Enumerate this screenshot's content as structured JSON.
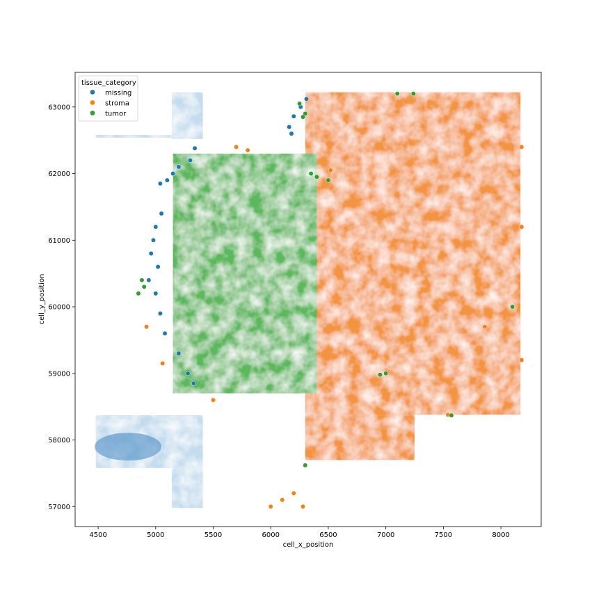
{
  "chart_data": {
    "type": "scatter",
    "title": "",
    "xlabel": "cell_x_position",
    "ylabel": "cell_y_position",
    "xlim": [
      4300,
      8350
    ],
    "ylim": [
      56700,
      63520
    ],
    "x_ticks": [
      4500,
      5000,
      5500,
      6000,
      6500,
      7000,
      7500,
      8000
    ],
    "y_ticks": [
      57000,
      58000,
      59000,
      60000,
      61000,
      62000,
      63000
    ],
    "grid": false,
    "legend": {
      "title": "tissue_category",
      "placement": "top-left",
      "entries": [
        "missing",
        "stroma",
        "tumor"
      ]
    },
    "series": [
      {
        "name": "missing",
        "color": "#1f77b4",
        "regions": [
          {
            "x": [
              5140,
              5410
            ],
            "y": [
              62520,
              63220
            ]
          },
          {
            "x": [
              4480,
              5140
            ],
            "y": [
              62540,
              62580
            ]
          },
          {
            "x": [
              4480,
              5410
            ],
            "y": [
              57580,
              58370
            ]
          },
          {
            "x": [
              5140,
              5410
            ],
            "y": [
              56980,
              57580
            ]
          }
        ],
        "points": [
          [
            5040,
            61850
          ],
          [
            5100,
            61900
          ],
          [
            5150,
            62000
          ],
          [
            5200,
            62100
          ],
          [
            5300,
            62200
          ],
          [
            5340,
            62380
          ],
          [
            5050,
            61400
          ],
          [
            5000,
            61200
          ],
          [
            4980,
            61000
          ],
          [
            4960,
            60800
          ],
          [
            5020,
            60600
          ],
          [
            4940,
            60400
          ],
          [
            5000,
            60200
          ],
          [
            5040,
            59900
          ],
          [
            5080,
            59600
          ],
          [
            5200,
            59300
          ],
          [
            5280,
            59000
          ],
          [
            5330,
            58850
          ],
          [
            6180,
            62600
          ],
          [
            6160,
            62700
          ],
          [
            6200,
            62860
          ],
          [
            6260,
            63000
          ],
          [
            6310,
            63120
          ]
        ]
      },
      {
        "name": "stroma",
        "color": "#ff7f0e",
        "regions": [
          {
            "x": [
              6300,
              8170
            ],
            "y": [
              58380,
              63220
            ]
          },
          {
            "x": [
              6300,
              7250
            ],
            "y": [
              57700,
              58380
            ]
          }
        ],
        "points": [
          [
            4920,
            59700
          ],
          [
            5060,
            59150
          ],
          [
            5500,
            58600
          ],
          [
            5700,
            62400
          ],
          [
            5800,
            62350
          ],
          [
            6000,
            57000
          ],
          [
            6100,
            57100
          ],
          [
            6200,
            57200
          ],
          [
            6280,
            57000
          ],
          [
            8180,
            62400
          ],
          [
            8180,
            61200
          ],
          [
            8180,
            59200
          ],
          [
            7540,
            58380
          ],
          [
            7860,
            59700
          ],
          [
            6520,
            62050
          ]
        ]
      },
      {
        "name": "tumor",
        "color": "#2ca02c",
        "regions": [
          {
            "x": [
              5150,
              6400
            ],
            "y": [
              58700,
              62300
            ]
          }
        ],
        "points": [
          [
            4850,
            60200
          ],
          [
            4880,
            60400
          ],
          [
            4900,
            60300
          ],
          [
            6250,
            63050
          ],
          [
            6300,
            62900
          ],
          [
            6280,
            62850
          ],
          [
            6350,
            62000
          ],
          [
            6400,
            61950
          ],
          [
            6500,
            61900
          ],
          [
            7100,
            63200
          ],
          [
            7240,
            63200
          ],
          [
            6950,
            58980
          ],
          [
            7000,
            59000
          ],
          [
            7570,
            58370
          ],
          [
            8100,
            60000
          ],
          [
            6300,
            57620
          ]
        ]
      }
    ]
  }
}
